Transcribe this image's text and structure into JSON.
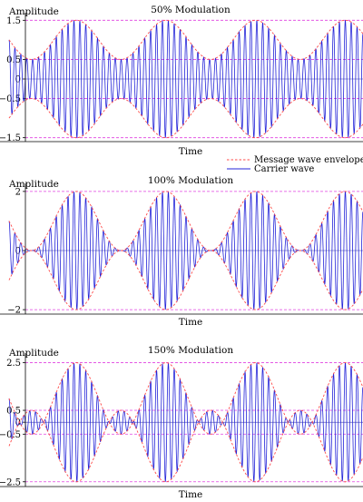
{
  "colors": {
    "carrier": "#2424d8",
    "envelope": "#ff4a4a",
    "guide": "#e040e0",
    "axis": "#000000",
    "background": "#ffffff"
  },
  "legend": {
    "envelope_label": "Message wave envelope",
    "carrier_label": "Carrier wave",
    "placement": "right, between first and second panel"
  },
  "chart_data": [
    {
      "type": "line",
      "title": "50% Modulation",
      "xlabel": "Time",
      "ylabel": "Amplitude",
      "modulation_index": 0.5,
      "ylim": [
        -1.6,
        1.6
      ],
      "yticks": [
        "1.5",
        "0.5",
        "0",
        "−0.5",
        "−1.5"
      ],
      "ytick_values": [
        1.5,
        0.5,
        0,
        -0.5,
        -1.5
      ],
      "guide_lines": [
        1.5,
        0.5,
        -0.5,
        -1.5
      ],
      "message_periods": 3.95,
      "message_phase_deg": 90,
      "carrier_cycles": 60,
      "series": [
        {
          "name": "Carrier wave",
          "formula": "(1 + 0.5·cos(2π·f_m·t))·cos(2π·f_c·t)"
        },
        {
          "name": "Message wave envelope",
          "formula": "±(1 + 0.5·cos(2π·f_m·t))"
        }
      ]
    },
    {
      "type": "line",
      "title": "100% Modulation",
      "xlabel": "Time",
      "ylabel": "Amplitude",
      "modulation_index": 1.0,
      "ylim": [
        -2.15,
        2.15
      ],
      "yticks": [
        "2",
        "0",
        "−2"
      ],
      "ytick_values": [
        2,
        0,
        -2
      ],
      "guide_lines": [
        2,
        -2
      ],
      "message_periods": 3.95,
      "message_phase_deg": 90,
      "carrier_cycles": 60,
      "series": [
        {
          "name": "Carrier wave",
          "formula": "(1 + 1.0·cos(2π·f_m·t))·cos(2π·f_c·t)"
        },
        {
          "name": "Message wave envelope",
          "formula": "±(1 + 1.0·cos(2π·f_m·t))"
        }
      ]
    },
    {
      "type": "line",
      "title": "150% Modulation",
      "xlabel": "Time",
      "ylabel": "Amplitude",
      "modulation_index": 1.5,
      "ylim": [
        -2.7,
        2.75
      ],
      "yticks": [
        "2.5",
        "0.5",
        "0",
        "−0.5",
        "−2.5"
      ],
      "ytick_values": [
        2.5,
        0.5,
        0,
        -0.5,
        -2.5
      ],
      "guide_lines": [
        2.5,
        0.5,
        -0.5,
        -2.5
      ],
      "message_periods": 3.95,
      "message_phase_deg": 90,
      "carrier_cycles": 60,
      "series": [
        {
          "name": "Carrier wave",
          "formula": "(1 + 1.5·cos(2π·f_m·t))·cos(2π·f_c·t)"
        },
        {
          "name": "Message wave envelope",
          "formula": "±(1 + 1.5·cos(2π·f_m·t))"
        }
      ]
    }
  ]
}
